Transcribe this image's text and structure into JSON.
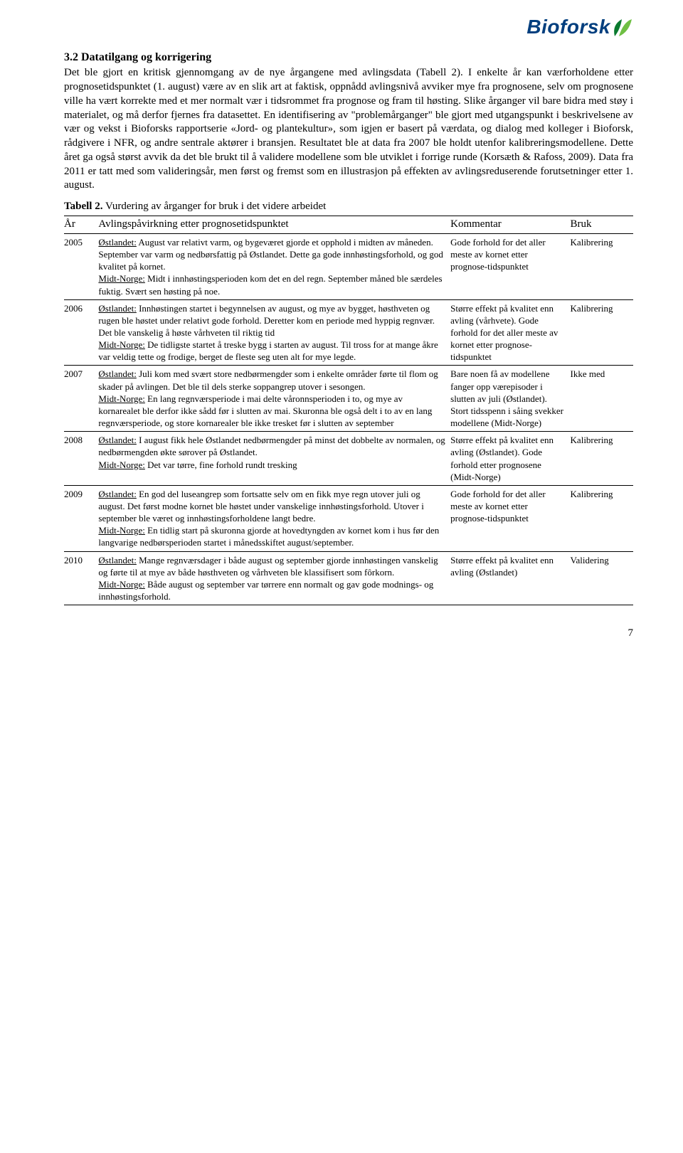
{
  "logo": {
    "text": "Bioforsk",
    "leaf_dark": "#0a7a2f",
    "leaf_light": "#6fbf44",
    "text_color": "#003e7e"
  },
  "section_heading": "3.2 Datatilgang og korrigering",
  "para1": "Det ble gjort en kritisk gjennomgang av de nye årgangene med avlingsdata (Tabell 2). I enkelte år kan værforholdene etter prognosetidspunktet (1. august) være av en slik art at faktisk, oppnådd avlingsnivå avviker mye fra prognosene, selv om prognosene ville ha vært korrekte med et mer normalt vær i tidsrommet fra prognose og fram til høsting. Slike årganger vil bare bidra med støy i materialet, og må derfor fjernes fra datasettet. En identifisering av \"problemårganger\" ble gjort med utgangspunkt i beskrivelsene av vær og vekst i Bioforsks rapportserie «Jord- og plantekultur», som igjen er basert på værdata, og dialog med kolleger i Bioforsk, rådgivere i NFR, og andre sentrale aktører i bransjen. Resultatet ble at data fra 2007 ble holdt utenfor kalibreringsmodellene. Dette året ga også størst avvik da det ble brukt til å validere modellene som ble utviklet i forrige runde (Korsæth & Rafoss, 2009). Data fra 2011 er tatt med som valideringsår, men først og fremst som en illustrasjon på effekten av avlingsreduserende forutsetninger etter 1. august.",
  "table_caption_bold": "Tabell 2.",
  "table_caption_rest": " Vurdering av årganger for bruk i det videre arbeidet",
  "headers": {
    "col1": "År",
    "col2": "Avlingspåvirkning etter prognosetidspunktet",
    "col3": "Kommentar",
    "col4": "Bruk"
  },
  "rows": [
    {
      "year": "2005",
      "ost_label": "Østlandet:",
      "ost": " August var relativt varm, og bygeværet gjorde et opphold i midten av måneden. September var varm og nedbørsfattig på Østlandet. Dette ga gode innhøstingsforhold, og god kvalitet på kornet.",
      "mn_label": "Midt-Norge:",
      "mn": " Midt i innhøstingsperioden kom det en del regn. September måned ble særdeles fuktig. Svært sen høsting på noe.",
      "comment": "Gode forhold for det aller meste av kornet etter prognose-tidspunktet",
      "use": "Kalibrering"
    },
    {
      "year": "2006",
      "ost_label": "Østlandet:",
      "ost": " Innhøstingen startet i begynnelsen av august, og mye av bygget, høsthveten og rugen ble høstet under relativt gode forhold. Deretter kom en periode med hyppig regnvær. Det ble vanskelig å høste vårhveten til riktig tid",
      "mn_label": "Midt-Norge:",
      "mn": " De tidligste startet å treske bygg i starten av august. Til tross for at mange åkre var veldig tette og frodige, berget de fleste seg uten alt for mye legde.",
      "comment": "Større effekt på kvalitet enn avling (vårhvete). Gode forhold for det aller meste av kornet etter prognose-tidspunktet",
      "use": "Kalibrering"
    },
    {
      "year": "2007",
      "ost_label": "Østlandet:",
      "ost": " Juli kom med svært store nedbørmengder som i enkelte områder førte til flom og skader på avlingen. Det ble til dels sterke soppangrep utover i sesongen.",
      "mn_label": "Midt-Norge:",
      "mn": " En lang regnværsperiode i mai delte våronnsperioden i to, og mye av kornarealet ble derfor ikke sådd før i slutten av mai. Skuronna ble også delt i to av en lang regnværsperiode, og store kornarealer ble ikke tresket før i slutten av september",
      "comment": "Bare noen få av modellene fanger opp værepisoder i slutten av juli (Østlandet). Stort tidsspenn i såing svekker modellene (Midt-Norge)",
      "use": "Ikke med"
    },
    {
      "year": "2008",
      "ost_label": "Østlandet:",
      "ost": " I august fikk hele Østlandet nedbørmengder på minst det dobbelte av normalen, og nedbørmengden økte sørover på Østlandet.",
      "mn_label": "Midt-Norge:",
      "mn": " Det var tørre, fine forhold rundt tresking",
      "comment": "Større effekt på kvalitet enn avling (Østlandet). Gode forhold etter prognosene (Midt-Norge)",
      "use": "Kalibrering"
    },
    {
      "year": "2009",
      "ost_label": "Østlandet:",
      "ost": " En god del luseangrep som fortsatte selv om en fikk mye regn utover juli og august. Det først modne kornet ble høstet under vanskelige innhøstingsforhold. Utover i september ble været og innhøstingsforholdene langt bedre.",
      "mn_label": "Midt-Norge:",
      "mn": " En tidlig start på skuronna gjorde at hovedtyngden av kornet kom i hus før den langvarige nedbørsperioden startet i månedsskiftet august/september.",
      "comment": "Gode forhold for det aller meste av kornet etter prognose-tidspunktet",
      "use": "Kalibrering"
    },
    {
      "year": "2010",
      "ost_label": "Østlandet:",
      "ost": " Mange regnværsdager i både august og september gjorde innhøstingen vanskelig og førte til at mye av både høsthveten og vårhveten ble klassifisert som fôrkorn.",
      "mn_label": "Midt-Norge:",
      "mn": " Både august og september var tørrere enn normalt og gav gode modnings- og innhøstingsforhold.",
      "comment": "Større effekt på kvalitet enn avling (Østlandet)",
      "use": "Validering"
    }
  ],
  "page_number": "7"
}
